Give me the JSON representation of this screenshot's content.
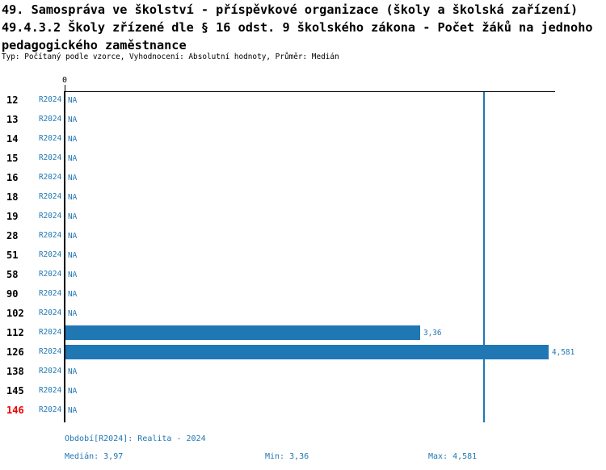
{
  "header": {
    "title_line1": "49. Samospráva ve školství - příspěvkové organizace (školy a školská zařízení)",
    "title_line2": "49.4.3.2 Školy zřízené dle § 16 odst. 9 školského zákona - Počet žáků na jednoho",
    "title_line3": "pedagogického zaměstnance",
    "subtitle": "Typ: Počítaný podle vzorce, Vyhodnocení: Absolutní hodnoty, Průměr: Medián"
  },
  "axis": {
    "zero_label": "0"
  },
  "chart_data": {
    "type": "bar",
    "orientation": "horizontal",
    "series_name": "R2024",
    "categories": [
      "12",
      "13",
      "14",
      "15",
      "16",
      "18",
      "19",
      "28",
      "51",
      "58",
      "90",
      "102",
      "112",
      "126",
      "138",
      "145",
      "146"
    ],
    "values": [
      null,
      null,
      null,
      null,
      null,
      null,
      null,
      null,
      null,
      null,
      null,
      null,
      3.36,
      4.581,
      null,
      null,
      null
    ],
    "value_labels": [
      "NA",
      "NA",
      "NA",
      "NA",
      "NA",
      "NA",
      "NA",
      "NA",
      "NA",
      "NA",
      "NA",
      "NA",
      "3,36",
      "4,581",
      "NA",
      "NA",
      "NA"
    ],
    "na_text": "NA",
    "xlim": [
      0,
      4.65
    ],
    "x_tick_labels": [
      "0"
    ],
    "median": 3.97,
    "min": 3.36,
    "max": 4.581,
    "red_categories": [
      "146"
    ],
    "grid": false,
    "legend_position": "none"
  },
  "footer": {
    "period_label": "Období[R2024]: Realita - 2024",
    "median_label": "Medián: 3,97",
    "min_label": "Min: 3,36",
    "max_label": "Max: 4,581"
  },
  "colors": {
    "bar": "#1f77b4",
    "label_blue": "#1f77b4",
    "median_line": "#1f77b4",
    "highlight_red": "#ee0000",
    "text": "#000000",
    "background": "#ffffff"
  }
}
